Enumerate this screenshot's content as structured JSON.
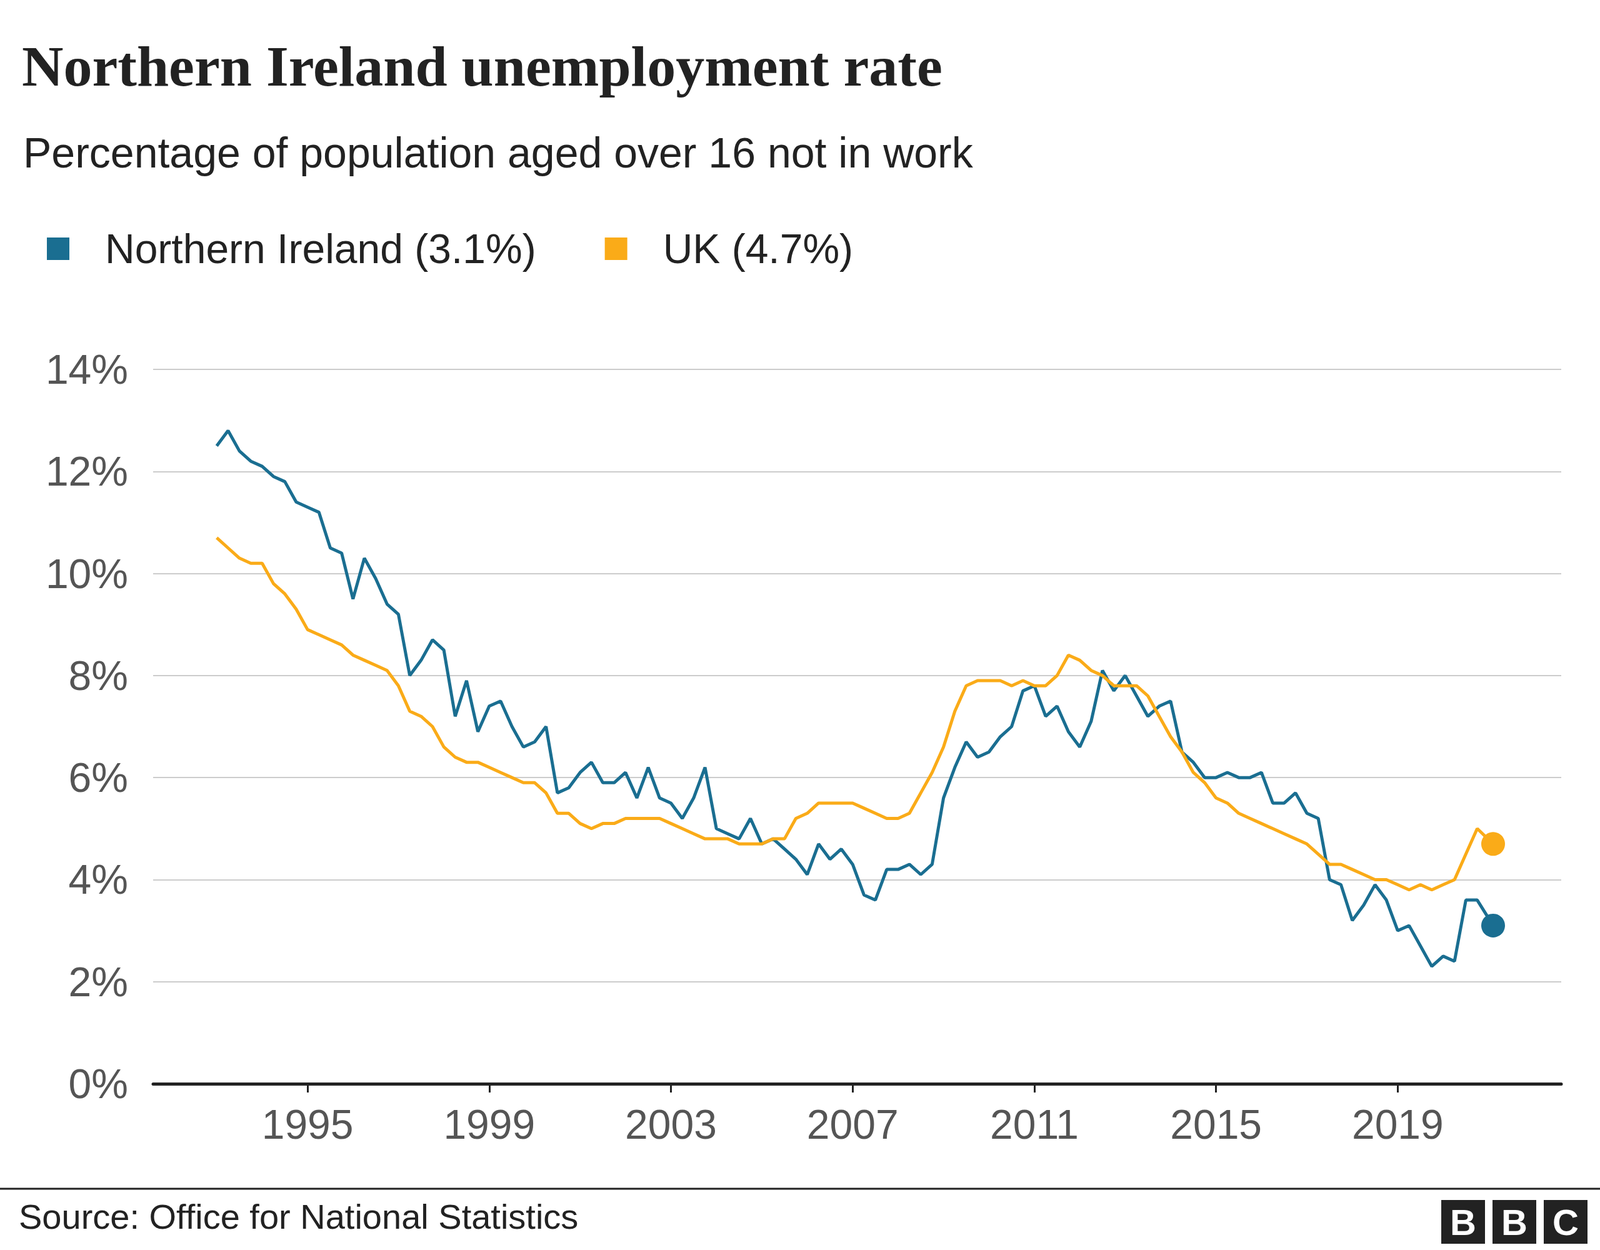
{
  "chart_data": {
    "type": "line",
    "title": "Northern Ireland unemployment rate",
    "subtitle": "Percentage of population aged over 16 not in work",
    "source": "Source: Office for National Statistics",
    "logo": "BBC",
    "x": [
      1993,
      1993.25,
      1993.5,
      1993.75,
      1994,
      1994.25,
      1994.5,
      1994.75,
      1995,
      1995.25,
      1995.5,
      1995.75,
      1996,
      1996.25,
      1996.5,
      1996.75,
      1997,
      1997.25,
      1997.5,
      1997.75,
      1998,
      1998.25,
      1998.5,
      1998.75,
      1999,
      1999.25,
      1999.5,
      1999.75,
      2000,
      2000.25,
      2000.5,
      2000.75,
      2001,
      2001.25,
      2001.5,
      2001.75,
      2002,
      2002.25,
      2002.5,
      2002.75,
      2003,
      2003.25,
      2003.5,
      2003.75,
      2004,
      2004.25,
      2004.5,
      2004.75,
      2005,
      2005.25,
      2005.5,
      2005.75,
      2006,
      2006.25,
      2006.5,
      2006.75,
      2007,
      2007.25,
      2007.5,
      2007.75,
      2008,
      2008.25,
      2008.5,
      2008.75,
      2009,
      2009.25,
      2009.5,
      2009.75,
      2010,
      2010.25,
      2010.5,
      2010.75,
      2011,
      2011.25,
      2011.5,
      2011.75,
      2012,
      2012.25,
      2012.5,
      2012.75,
      2013,
      2013.25,
      2013.5,
      2013.75,
      2014,
      2014.25,
      2014.5,
      2014.75,
      2015,
      2015.25,
      2015.5,
      2015.75,
      2016,
      2016.25,
      2016.5,
      2016.75,
      2017,
      2017.25,
      2017.5,
      2017.75,
      2018,
      2018.25,
      2018.5,
      2018.75,
      2019,
      2019.25,
      2019.5,
      2019.75,
      2020,
      2020.25,
      2020.5,
      2020.75,
      2021.1
    ],
    "series": [
      {
        "name": "Northern Ireland (3.1%)",
        "color": "#1a6e91",
        "values": [
          12.5,
          12.8,
          12.4,
          12.2,
          12.1,
          11.9,
          11.8,
          11.4,
          11.3,
          11.2,
          10.5,
          10.4,
          9.5,
          10.3,
          9.9,
          9.4,
          9.2,
          8.0,
          8.3,
          8.7,
          8.5,
          7.2,
          7.9,
          6.9,
          7.4,
          7.5,
          7.0,
          6.6,
          6.7,
          7.0,
          5.7,
          5.8,
          6.1,
          6.3,
          5.9,
          5.9,
          6.1,
          5.6,
          6.2,
          5.6,
          5.5,
          5.2,
          5.6,
          6.2,
          5.0,
          4.9,
          4.8,
          5.2,
          4.7,
          4.8,
          4.6,
          4.4,
          4.1,
          4.7,
          4.4,
          4.6,
          4.3,
          3.7,
          3.6,
          4.2,
          4.2,
          4.3,
          4.1,
          4.3,
          5.6,
          6.2,
          6.7,
          6.4,
          6.5,
          6.8,
          7.0,
          7.7,
          7.8,
          7.2,
          7.4,
          6.9,
          6.6,
          7.1,
          8.1,
          7.7,
          8.0,
          7.6,
          7.2,
          7.4,
          7.5,
          6.5,
          6.3,
          6.0,
          6.0,
          6.1,
          6.0,
          6.0,
          6.1,
          5.5,
          5.5,
          5.7,
          5.3,
          5.2,
          4.0,
          3.9,
          3.2,
          3.5,
          3.9,
          3.6,
          3.0,
          3.1,
          2.7,
          2.3,
          2.5,
          2.4,
          3.6,
          3.6,
          3.1
        ]
      },
      {
        "name": "UK (4.7%)",
        "color": "#faab18",
        "values": [
          10.7,
          10.5,
          10.3,
          10.2,
          10.2,
          9.8,
          9.6,
          9.3,
          8.9,
          8.8,
          8.7,
          8.6,
          8.4,
          8.3,
          8.2,
          8.1,
          7.8,
          7.3,
          7.2,
          7.0,
          6.6,
          6.4,
          6.3,
          6.3,
          6.2,
          6.1,
          6.0,
          5.9,
          5.9,
          5.7,
          5.3,
          5.3,
          5.1,
          5.0,
          5.1,
          5.1,
          5.2,
          5.2,
          5.2,
          5.2,
          5.1,
          5.0,
          4.9,
          4.8,
          4.8,
          4.8,
          4.7,
          4.7,
          4.7,
          4.8,
          4.8,
          5.2,
          5.3,
          5.5,
          5.5,
          5.5,
          5.5,
          5.4,
          5.3,
          5.2,
          5.2,
          5.3,
          5.7,
          6.1,
          6.6,
          7.3,
          7.8,
          7.9,
          7.9,
          7.9,
          7.8,
          7.9,
          7.8,
          7.8,
          8.0,
          8.4,
          8.3,
          8.1,
          8.0,
          7.8,
          7.8,
          7.8,
          7.6,
          7.2,
          6.8,
          6.5,
          6.1,
          5.9,
          5.6,
          5.5,
          5.3,
          5.2,
          5.1,
          5.0,
          4.9,
          4.8,
          4.7,
          4.5,
          4.3,
          4.3,
          4.2,
          4.1,
          4.0,
          4.0,
          3.9,
          3.8,
          3.9,
          3.8,
          3.9,
          4.0,
          4.5,
          5.0,
          4.7
        ]
      }
    ],
    "xlim": [
      1991.6,
      2022.6
    ],
    "xticks": [
      1995,
      1999,
      2003,
      2007,
      2011,
      2015,
      2019
    ],
    "ylim": [
      0,
      14
    ],
    "yticks": [
      {
        "value": 0,
        "label": "0%"
      },
      {
        "value": 2,
        "label": "2%"
      },
      {
        "value": 4,
        "label": "4%"
      },
      {
        "value": 6,
        "label": "6%"
      },
      {
        "value": 8,
        "label": "8%"
      },
      {
        "value": 10,
        "label": "10%"
      },
      {
        "value": 12,
        "label": "12%"
      },
      {
        "value": 14,
        "label": "14%"
      }
    ],
    "grid": true,
    "legend": "top-left"
  }
}
